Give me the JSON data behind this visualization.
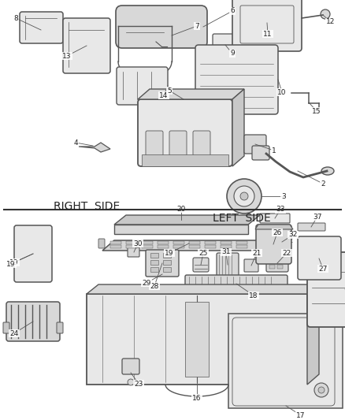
{
  "bg_color": "#ffffff",
  "line_color": "#555555",
  "text_color": "#222222",
  "fill_light": "#e8e8e8",
  "fill_mid": "#d8d8d8",
  "fill_dark": "#c8c8c8"
}
